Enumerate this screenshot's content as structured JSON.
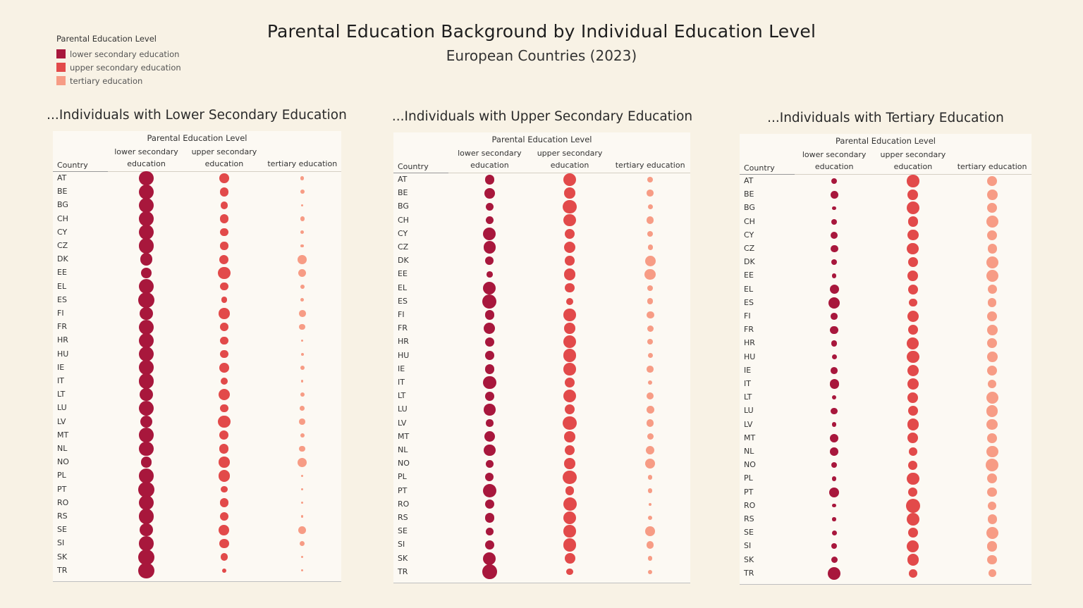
{
  "title": "Parental Education Background by Individual Education Level",
  "subtitle": "European Countries (2023)",
  "legend": {
    "title": "Parental Education Level",
    "items": [
      {
        "label": "lower secondary education",
        "color": "#a8173c"
      },
      {
        "label": "upper secondary education",
        "color": "#e24a4a"
      },
      {
        "label": "tertiary education",
        "color": "#f79c85"
      }
    ]
  },
  "header": {
    "group_label": "Parental Education Level",
    "country_label": "Country",
    "columns": [
      {
        "line1": "lower secondary",
        "line2": "education"
      },
      {
        "line1": "upper secondary",
        "line2": "education"
      },
      {
        "line1": "",
        "line2": "tertiary education"
      }
    ]
  },
  "chart_data": [
    {
      "type": "scatter",
      "title": "...Individuals with Lower Secondary Education",
      "categories": [
        "AT",
        "BE",
        "BG",
        "CH",
        "CY",
        "CZ",
        "DK",
        "EE",
        "EL",
        "ES",
        "FI",
        "FR",
        "HR",
        "HU",
        "IE",
        "IT",
        "LT",
        "LU",
        "LV",
        "MT",
        "NL",
        "NO",
        "PL",
        "PT",
        "RO",
        "RS",
        "SE",
        "SI",
        "SK",
        "TR"
      ],
      "series": [
        {
          "name": "lower secondary education",
          "values": [
            82,
            84,
            88,
            80,
            82,
            86,
            58,
            40,
            86,
            92,
            62,
            84,
            86,
            84,
            80,
            90,
            62,
            84,
            56,
            80,
            76,
            46,
            78,
            92,
            84,
            86,
            62,
            78,
            92,
            95
          ]
        },
        {
          "name": "upper secondary education",
          "values": [
            32,
            28,
            18,
            26,
            22,
            22,
            30,
            58,
            22,
            12,
            44,
            24,
            22,
            24,
            34,
            18,
            48,
            22,
            54,
            30,
            30,
            44,
            50,
            14,
            28,
            26,
            40,
            32,
            18,
            5
          ]
        },
        {
          "name": "tertiary education",
          "values": [
            4,
            6,
            1,
            6,
            4,
            3,
            28,
            22,
            5,
            4,
            16,
            12,
            1,
            2,
            5,
            1,
            6,
            7,
            12,
            6,
            12,
            30,
            1,
            1,
            1,
            1,
            20,
            8,
            1,
            1
          ]
        }
      ]
    },
    {
      "type": "scatter",
      "title": "...Individuals with Upper Secondary Education",
      "categories": [
        "AT",
        "BE",
        "BG",
        "CH",
        "CY",
        "CZ",
        "DK",
        "EE",
        "EL",
        "ES",
        "FI",
        "FR",
        "HR",
        "HU",
        "IE",
        "IT",
        "LT",
        "LU",
        "LV",
        "MT",
        "NL",
        "NO",
        "PL",
        "PT",
        "RO",
        "RS",
        "SE",
        "SI",
        "SK",
        "TR"
      ],
      "series": [
        {
          "name": "lower secondary education",
          "values": [
            30,
            40,
            24,
            22,
            60,
            54,
            26,
            12,
            60,
            76,
            30,
            46,
            32,
            28,
            32,
            66,
            28,
            50,
            18,
            42,
            48,
            20,
            26,
            70,
            30,
            30,
            20,
            30,
            60,
            80
          ]
        },
        {
          "name": "upper secondary education",
          "values": [
            62,
            44,
            72,
            56,
            36,
            48,
            32,
            50,
            34,
            18,
            56,
            44,
            60,
            66,
            56,
            38,
            60,
            36,
            70,
            44,
            38,
            44,
            70,
            28,
            68,
            66,
            56,
            62,
            40,
            14
          ]
        },
        {
          "name": "tertiary education",
          "values": [
            10,
            16,
            8,
            18,
            10,
            8,
            42,
            44,
            10,
            12,
            20,
            14,
            10,
            8,
            16,
            6,
            18,
            20,
            18,
            14,
            26,
            38,
            6,
            6,
            2,
            6,
            34,
            18,
            6,
            6
          ]
        }
      ]
    },
    {
      "type": "scatter",
      "title": "...Individuals with Tertiary Education",
      "categories": [
        "AT",
        "BE",
        "BG",
        "CH",
        "CY",
        "CZ",
        "DK",
        "EE",
        "EL",
        "ES",
        "FI",
        "FR",
        "HR",
        "HU",
        "IE",
        "IT",
        "LT",
        "LU",
        "LV",
        "MT",
        "NL",
        "NO",
        "PL",
        "PT",
        "RO",
        "RS",
        "SE",
        "SI",
        "SK",
        "TR"
      ],
      "series": [
        {
          "name": "lower secondary education",
          "values": [
            12,
            20,
            4,
            10,
            18,
            20,
            10,
            6,
            30,
            50,
            16,
            22,
            12,
            8,
            16,
            30,
            6,
            16,
            6,
            26,
            24,
            10,
            6,
            36,
            4,
            4,
            8,
            10,
            14,
            64
          ]
        },
        {
          "name": "upper secondary education",
          "values": [
            56,
            40,
            60,
            38,
            42,
            52,
            38,
            40,
            36,
            22,
            46,
            36,
            52,
            56,
            46,
            46,
            40,
            36,
            48,
            40,
            24,
            30,
            56,
            30,
            74,
            64,
            36,
            52,
            50,
            24
          ]
        },
        {
          "name": "tertiary education",
          "values": [
            34,
            40,
            36,
            52,
            38,
            30,
            52,
            54,
            30,
            28,
            38,
            40,
            36,
            40,
            38,
            26,
            54,
            48,
            42,
            34,
            52,
            60,
            36,
            32,
            26,
            30,
            52,
            38,
            32,
            20
          ]
        }
      ]
    }
  ]
}
